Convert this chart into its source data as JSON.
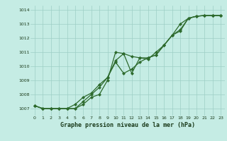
{
  "xlabel": "Graphe pression niveau de la mer (hPa)",
  "background_color": "#c5ece4",
  "grid_color": "#9dcfc5",
  "line_color": "#2d6a2d",
  "xlim": [
    -0.5,
    23.5
  ],
  "ylim": [
    1006.5,
    1014.3
  ],
  "xticks": [
    0,
    1,
    2,
    3,
    4,
    5,
    6,
    7,
    8,
    9,
    10,
    11,
    12,
    13,
    14,
    15,
    16,
    17,
    18,
    19,
    20,
    21,
    22,
    23
  ],
  "yticks": [
    1007,
    1008,
    1009,
    1010,
    1011,
    1012,
    1013,
    1014
  ],
  "line1_x": [
    0,
    1,
    2,
    3,
    4,
    5,
    6,
    7,
    8,
    9,
    10,
    11,
    12,
    13,
    14,
    15,
    16,
    17,
    18,
    19,
    20,
    21,
    22,
    23
  ],
  "line1_y": [
    1007.2,
    1007.0,
    1007.0,
    1007.0,
    1007.0,
    1007.0,
    1007.3,
    1007.8,
    1008.0,
    1009.0,
    1011.0,
    1010.9,
    1010.7,
    1010.6,
    1010.6,
    1010.8,
    1011.5,
    1012.2,
    1013.0,
    1013.4,
    1013.55,
    1013.6,
    1013.6,
    1013.6
  ],
  "line2_x": [
    0,
    1,
    2,
    3,
    4,
    5,
    6,
    7,
    8,
    9,
    10,
    11,
    12,
    13,
    14,
    15,
    16,
    17,
    18,
    19,
    20,
    21,
    22,
    23
  ],
  "line2_y": [
    1007.2,
    1007.0,
    1007.0,
    1007.0,
    1007.0,
    1007.0,
    1007.5,
    1008.0,
    1008.5,
    1009.2,
    1010.3,
    1009.5,
    1009.8,
    1010.3,
    1010.6,
    1010.8,
    1011.5,
    1012.2,
    1012.5,
    1013.4,
    1013.55,
    1013.6,
    1013.6,
    1013.6
  ],
  "line3_x": [
    0,
    1,
    2,
    3,
    4,
    5,
    6,
    7,
    8,
    9,
    10,
    11,
    12,
    13,
    14,
    15,
    16,
    17,
    18,
    19,
    20,
    21,
    22,
    23
  ],
  "line3_y": [
    1007.2,
    1007.0,
    1007.0,
    1007.0,
    1007.0,
    1007.3,
    1007.8,
    1008.1,
    1008.7,
    1009.2,
    1010.4,
    1010.9,
    1009.5,
    1010.6,
    1010.5,
    1011.0,
    1011.5,
    1012.2,
    1012.6,
    1013.4,
    1013.55,
    1013.6,
    1013.6,
    1013.6
  ]
}
